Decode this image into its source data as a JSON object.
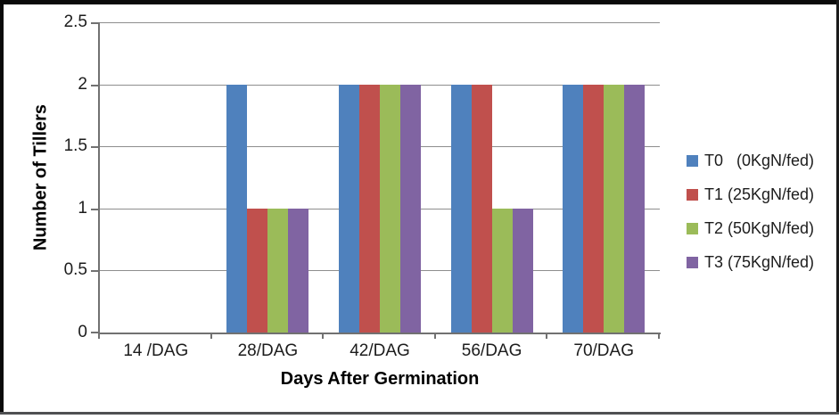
{
  "frame": {
    "background": "#ffffff",
    "border_color": "#0a0a0a"
  },
  "chart_data": {
    "type": "bar",
    "title": "",
    "xlabel": "Days After Germination",
    "ylabel": "Number of Tillers",
    "categories": [
      "14 /DAG",
      "28/DAG",
      "42/DAG",
      "56/DAG",
      "70/DAG"
    ],
    "series": [
      {
        "name": "T0   (0KgN/fed)",
        "color": "#4F81BD",
        "values": [
          0,
          2,
          2,
          2,
          2
        ]
      },
      {
        "name": "T1 (25KgN/fed)",
        "color": "#C0504D",
        "values": [
          0,
          1,
          2,
          2,
          2
        ]
      },
      {
        "name": "T2 (50KgN/fed)",
        "color": "#9BBB59",
        "values": [
          0,
          1,
          2,
          1,
          2
        ]
      },
      {
        "name": "T3 (75KgN/fed)",
        "color": "#8064A2",
        "values": [
          0,
          1,
          2,
          1,
          2
        ]
      }
    ],
    "ylim": [
      0,
      2.5
    ],
    "yticks": [
      0,
      0.5,
      1,
      1.5,
      2,
      2.5
    ],
    "ytick_labels": [
      "0",
      "0.5",
      "1",
      "1.5",
      "2",
      "2.5"
    ],
    "grid": true,
    "legend_position": "right",
    "gridline_color": "#8e8e8e",
    "axis_color": "#717171"
  }
}
